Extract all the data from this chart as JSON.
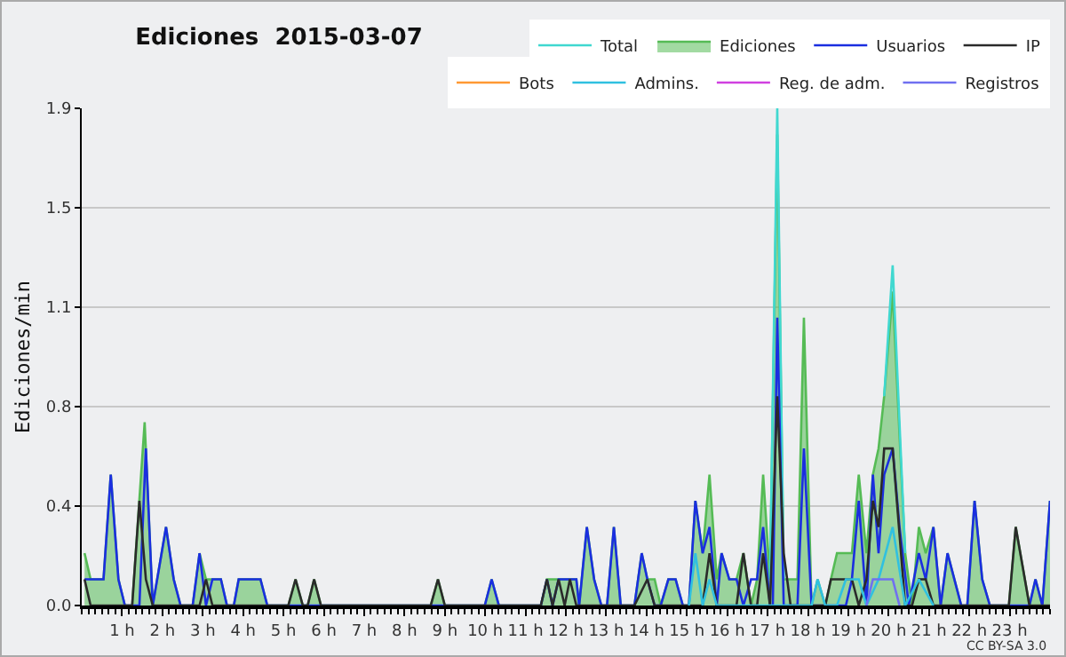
{
  "chart_data": {
    "type": "line",
    "title": "Ediciones  2015-03-07",
    "ylabel": "Ediciones/min",
    "xlim": [
      0,
      24
    ],
    "xticks": [
      {
        "value": 1,
        "label": "1 h"
      },
      {
        "value": 2,
        "label": "2 h"
      },
      {
        "value": 3,
        "label": "3 h"
      },
      {
        "value": 4,
        "label": "4 h"
      },
      {
        "value": 5,
        "label": "5 h"
      },
      {
        "value": 6,
        "label": "6 h"
      },
      {
        "value": 7,
        "label": "7 h"
      },
      {
        "value": 8,
        "label": "8 h"
      },
      {
        "value": 9,
        "label": "9 h"
      },
      {
        "value": 10,
        "label": "10 h"
      },
      {
        "value": 11,
        "label": "11 h"
      },
      {
        "value": 12,
        "label": "12 h"
      },
      {
        "value": 13,
        "label": "13 h"
      },
      {
        "value": 14,
        "label": "14 h"
      },
      {
        "value": 15,
        "label": "15 h"
      },
      {
        "value": 16,
        "label": "16 h"
      },
      {
        "value": 17,
        "label": "17 h"
      },
      {
        "value": 18,
        "label": "18 h"
      },
      {
        "value": 19,
        "label": "19 h"
      },
      {
        "value": 20,
        "label": "20 h"
      },
      {
        "value": 21,
        "label": "21 h"
      },
      {
        "value": 22,
        "label": "22 h"
      },
      {
        "value": 23,
        "label": "23 h"
      }
    ],
    "ylim": [
      0,
      1.9
    ],
    "yticks": [
      {
        "value": 0,
        "label": "0.0"
      },
      {
        "value": 0.38,
        "label": "0.4"
      },
      {
        "value": 0.76,
        "label": "0.8"
      },
      {
        "value": 1.14,
        "label": "1.1"
      },
      {
        "value": 1.52,
        "label": "1.5"
      },
      {
        "value": 1.9,
        "label": "1.9"
      }
    ],
    "grid": "y",
    "legend": "top right",
    "marker": "none",
    "line_style": "solid",
    "annotations": [
      "CC BY-SA 3.0"
    ],
    "series": [
      {
        "name": "Total",
        "color": "#40d8d0",
        "x": [
          17.06,
          17.24,
          17.4,
          17.57,
          19.89,
          20.1,
          20.41
        ],
        "values": [
          0.1,
          1.9,
          0.1,
          null,
          0.8,
          1.3,
          0.2
        ]
      },
      {
        "name": "Ediciones",
        "color": "#55bb55",
        "type": "area",
        "x": [
          0.07,
          0.22,
          0.54,
          0.72,
          0.91,
          1.07,
          1.25,
          1.56,
          1.76,
          2.09,
          2.28,
          2.45,
          2.75,
          2.92,
          3.08,
          3.45,
          3.6,
          3.77,
          3.89,
          4.43,
          4.6,
          5.12,
          5.3,
          5.48,
          5.6,
          5.76,
          5.93,
          8.65,
          8.83,
          9.0,
          9.99,
          10.16,
          10.34,
          11.38,
          11.53,
          12.26,
          12.33,
          12.52,
          12.7,
          12.88,
          13.02,
          13.19,
          13.36,
          13.7,
          13.88,
          14.02,
          14.2,
          14.35,
          14.54,
          14.72,
          14.9,
          15.05,
          15.21,
          15.39,
          15.56,
          15.74,
          15.86,
          16.05,
          16.23,
          16.4,
          16.59,
          16.74,
          16.89,
          17.06,
          17.24,
          17.4,
          17.57,
          17.74,
          17.9,
          18.09,
          18.24,
          18.43,
          18.57,
          18.72,
          18.94,
          19.09,
          19.26,
          19.45,
          19.61,
          19.75,
          19.89,
          20.1,
          20.41,
          20.58,
          20.75,
          20.92,
          21.11,
          21.29,
          21.46,
          21.8,
          21.95,
          22.13,
          22.32,
          22.51,
          22.98,
          23.15,
          23.49,
          23.64,
          23.81,
          24.0
        ],
        "values": [
          0.2,
          0.1,
          0.1,
          0.5,
          0.1,
          0,
          0,
          0.7,
          0,
          0.3,
          0.1,
          0,
          0,
          0.2,
          0.1,
          0.1,
          0,
          0,
          0.1,
          0.1,
          0,
          0,
          0.1,
          0,
          0,
          0.1,
          0,
          0,
          0.1,
          0,
          0,
          0.1,
          0,
          0,
          0.1,
          0.1,
          0,
          0.3,
          0.1,
          0,
          0,
          0.3,
          0,
          0,
          0.2,
          0.1,
          0.1,
          0,
          0.1,
          0.1,
          0,
          0,
          0.4,
          0.2,
          0.5,
          0.1,
          0.2,
          0.1,
          0.1,
          0.2,
          0,
          0.1,
          0.5,
          0.1,
          1.8,
          0.1,
          0.1,
          0.1,
          1.1,
          0,
          0.1,
          0,
          0.1,
          0.2,
          0.2,
          0.2,
          0.5,
          0.2,
          0.5,
          0.6,
          0.8,
          1.2,
          0.2,
          0,
          0.3,
          0.2,
          0.3,
          0,
          0.2,
          0,
          0,
          0.4,
          0.1,
          0,
          0,
          0.3,
          0,
          0.1,
          0,
          0.4
        ]
      },
      {
        "name": "Usuarios",
        "color": "#1a2ee0",
        "x": [
          0.07,
          0.54,
          0.72,
          0.91,
          1.07,
          1.43,
          1.59,
          1.76,
          2.09,
          2.28,
          2.45,
          2.75,
          2.92,
          3.08,
          3.24,
          3.45,
          3.6,
          3.77,
          3.89,
          4.43,
          4.6,
          9.99,
          10.16,
          10.34,
          11.38,
          11.53,
          11.67,
          11.82,
          11.97,
          12.26,
          12.33,
          12.52,
          12.7,
          12.88,
          13.02,
          13.19,
          13.36,
          13.7,
          13.88,
          14.02,
          14.2,
          14.35,
          14.54,
          14.72,
          14.9,
          15.05,
          15.21,
          15.39,
          15.56,
          15.74,
          15.86,
          16.05,
          16.23,
          16.4,
          16.59,
          16.74,
          16.89,
          17.06,
          17.13,
          17.24,
          17.4,
          17.74,
          17.9,
          18.09,
          18.94,
          19.09,
          19.26,
          19.45,
          19.61,
          19.75,
          19.89,
          20.1,
          20.27,
          20.5,
          20.75,
          20.92,
          21.11,
          21.29,
          21.46,
          21.8,
          21.95,
          22.13,
          22.32,
          22.51,
          23.49,
          23.64,
          23.81,
          24.0
        ],
        "values": [
          0.1,
          0.1,
          0.5,
          0.1,
          0,
          0,
          0.6,
          0,
          0.3,
          0.1,
          0,
          0,
          0.2,
          0,
          0.1,
          0.1,
          0,
          0,
          0.1,
          0.1,
          0,
          0,
          0.1,
          0,
          0,
          0.1,
          0,
          0.1,
          0.1,
          0.1,
          0,
          0.3,
          0.1,
          0,
          0,
          0.3,
          0,
          0,
          0.2,
          0.1,
          0,
          0,
          0.1,
          0.1,
          0,
          0,
          0.4,
          0.2,
          0.3,
          0,
          0.2,
          0.1,
          0.1,
          0,
          0.1,
          0.1,
          0.3,
          0,
          0,
          1.1,
          0,
          0,
          0.6,
          0,
          0,
          0.1,
          0.4,
          0,
          0.5,
          0.2,
          0.5,
          0.6,
          0.3,
          0,
          0.2,
          0.1,
          0.3,
          0,
          0.2,
          0,
          0,
          0.4,
          0.1,
          0,
          0,
          0.1,
          0,
          0.4
        ]
      },
      {
        "name": "IP",
        "color": "#2a2a2a",
        "x": [
          0.07,
          0.22,
          1.25,
          1.43,
          1.59,
          1.76,
          2.92,
          3.08,
          3.24,
          5.12,
          5.3,
          5.48,
          5.6,
          5.76,
          5.93,
          8.65,
          8.83,
          9.0,
          11.38,
          11.53,
          11.67,
          11.82,
          11.97,
          12.1,
          12.26,
          13.7,
          14.02,
          14.2,
          15.39,
          15.56,
          15.74,
          16.23,
          16.4,
          16.59,
          16.74,
          16.89,
          17.06,
          17.24,
          17.4,
          17.57,
          18.43,
          18.57,
          19.09,
          19.26,
          19.45,
          19.61,
          19.75,
          19.89,
          20.1,
          20.41,
          20.58,
          20.75,
          20.92,
          21.11,
          22.98,
          23.15,
          23.49,
          24.0
        ],
        "values": [
          0.1,
          0,
          0,
          0.4,
          0.1,
          0,
          0,
          0.1,
          0,
          0,
          0.1,
          0,
          0,
          0.1,
          0,
          0,
          0.1,
          0,
          0,
          0.1,
          0,
          0.1,
          0,
          0.1,
          0,
          0,
          0.1,
          0,
          0,
          0.2,
          0,
          0,
          0.2,
          0,
          0,
          0.2,
          0,
          0.8,
          0.2,
          0,
          0,
          0.1,
          0.1,
          0,
          0.1,
          0.4,
          0.3,
          0.6,
          0.6,
          0,
          0,
          0.1,
          0.1,
          0,
          0,
          0.3,
          0,
          0
        ]
      },
      {
        "name": "Bots",
        "color": "#ff9933",
        "values": [
          null
        ]
      },
      {
        "name": "Admins.",
        "color": "#30c0e0",
        "x": [
          15.05,
          15.21,
          15.39,
          15.56,
          15.74,
          18.09,
          18.24,
          18.43,
          18.72,
          18.94,
          19.26,
          19.45,
          19.75,
          20.1,
          20.41,
          20.75,
          21.11
        ],
        "values": [
          0,
          0.2,
          0,
          0.1,
          0,
          0,
          0.1,
          0,
          0,
          0.1,
          0.1,
          0,
          0.1,
          0.3,
          0,
          0.1,
          0
        ]
      },
      {
        "name": "Reg. de adm.",
        "color": "#d040e0",
        "values": [
          null
        ]
      },
      {
        "name": "Registros",
        "color": "#7070f0",
        "x": [
          19.45,
          19.61,
          20.1,
          20.27
        ],
        "values": [
          0,
          0.1,
          0.1,
          0
        ]
      }
    ]
  }
}
